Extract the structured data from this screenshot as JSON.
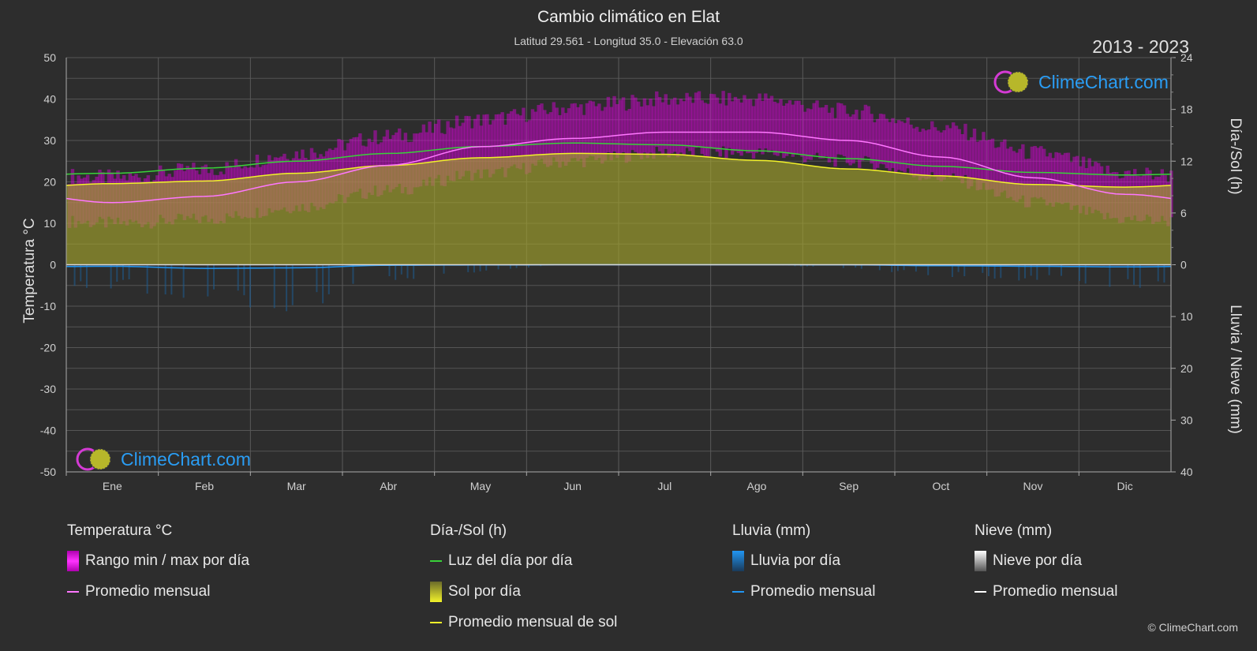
{
  "title": "Cambio climático en Elat",
  "subtitle": "Latitud 29.561 - Longitud 35.0 - Elevación 63.0",
  "year_range": "2013 - 2023",
  "logo_text": "ClimeChart.com",
  "copyright": "© ClimeChart.com",
  "colors": {
    "background": "#2d2d2d",
    "temp_range": "#e000e0",
    "temp_avg": "#ff77ff",
    "daylight": "#39d139",
    "sunshine": "#a3a32c",
    "sunshine_avg": "#f2f22a",
    "rain": "#2196f3",
    "snow": "#ffffff"
  },
  "legend": {
    "temperature": {
      "title": "Temperatura °C",
      "range_label": "Rango min / max por día",
      "avg_label": "Promedio mensual"
    },
    "sun": {
      "title": "Día-/Sol (h)",
      "daylight_label": "Luz del día por día",
      "sunshine_label": "Sol por día",
      "sunshine_avg_label": "Promedio mensual de sol"
    },
    "rain": {
      "title": "Lluvia (mm)",
      "rain_label": "Lluvia por día",
      "avg_label": "Promedio mensual"
    },
    "snow": {
      "title": "Nieve (mm)",
      "snow_label": "Nieve por día",
      "avg_label": "Promedio mensual"
    }
  },
  "chart_data": {
    "type": "area",
    "categories": [
      "Ene",
      "Feb",
      "Mar",
      "Abr",
      "May",
      "Jun",
      "Jul",
      "Ago",
      "Sep",
      "Oct",
      "Nov",
      "Dic"
    ],
    "left_axis": {
      "label": "Temperatura °C",
      "range": [
        -50,
        50
      ],
      "ticks": [
        50,
        40,
        30,
        20,
        10,
        0,
        -10,
        -20,
        -30,
        -40,
        -50
      ]
    },
    "right_axis_top": {
      "label": "Día-/Sol (h)",
      "range": [
        0,
        24
      ],
      "ticks": [
        24,
        18,
        12,
        6,
        0
      ]
    },
    "right_axis_bottom": {
      "label": "Lluvia / Nieve (mm)",
      "range": [
        0,
        40
      ],
      "ticks": [
        0,
        10,
        20,
        30,
        40
      ]
    },
    "series": [
      {
        "name": "Rango min / max por día",
        "kind": "band",
        "axis": "temperature",
        "min": [
          10,
          11,
          14,
          18,
          22,
          25,
          27,
          27,
          25,
          21,
          15,
          11
        ],
        "max": [
          21,
          23,
          27,
          31,
          35,
          38,
          40,
          40,
          37,
          33,
          27,
          22
        ]
      },
      {
        "name": "Promedio mensual",
        "kind": "line",
        "axis": "temperature",
        "values": [
          15,
          16.5,
          20,
          24,
          28.5,
          30.5,
          32,
          32,
          30,
          26,
          21,
          17
        ]
      },
      {
        "name": "Luz del día por día",
        "kind": "line",
        "axis": "sun_hours",
        "values": [
          10.6,
          11.2,
          12.0,
          12.9,
          13.7,
          14.1,
          13.9,
          13.2,
          12.3,
          11.4,
          10.7,
          10.4
        ]
      },
      {
        "name": "Sol por día",
        "kind": "area",
        "axis": "sun_hours",
        "values": [
          9.4,
          9.7,
          10.6,
          11.5,
          12.4,
          12.9,
          12.8,
          12.1,
          11.1,
          10.3,
          9.3,
          9.0
        ]
      },
      {
        "name": "Promedio mensual de sol",
        "kind": "line",
        "axis": "sun_hours",
        "values": [
          9.4,
          9.7,
          10.6,
          11.5,
          12.4,
          12.9,
          12.8,
          12.1,
          11.1,
          10.3,
          9.3,
          9.0
        ]
      },
      {
        "name": "Lluvia por día",
        "kind": "bars",
        "axis": "precip",
        "values": [
          3,
          5,
          6,
          2,
          1,
          0,
          0,
          0,
          0.5,
          1.5,
          2,
          3
        ]
      },
      {
        "name": "Promedio mensual",
        "kind": "line",
        "axis": "precip",
        "values": [
          0.3,
          0.7,
          0.6,
          0.1,
          0.05,
          0,
          0,
          0,
          0.02,
          0.2,
          0.3,
          0.4
        ]
      }
    ],
    "grid": true
  }
}
